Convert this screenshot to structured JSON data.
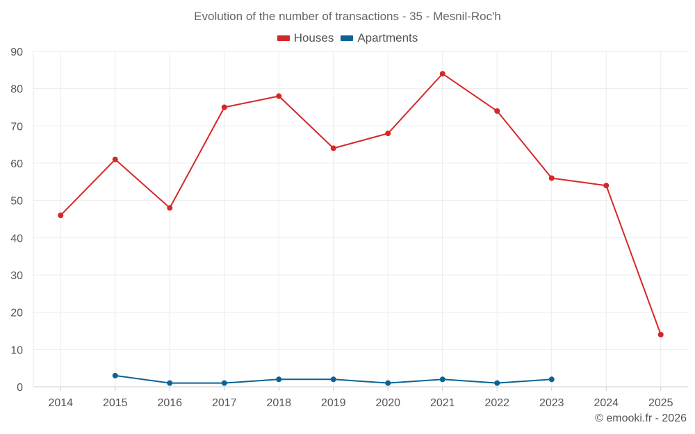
{
  "chart_data": {
    "type": "line",
    "title": "Evolution of the number of transactions - 35 - Mesnil-Roc'h",
    "categories": [
      "2014",
      "2015",
      "2016",
      "2017",
      "2018",
      "2019",
      "2020",
      "2021",
      "2022",
      "2023",
      "2024",
      "2025"
    ],
    "series": [
      {
        "name": "Houses",
        "color": "#d62728",
        "values": [
          46,
          61,
          48,
          75,
          78,
          64,
          68,
          84,
          74,
          56,
          54,
          14
        ]
      },
      {
        "name": "Apartments",
        "color": "#0a6396",
        "values": [
          null,
          3,
          1,
          1,
          2,
          2,
          1,
          2,
          1,
          2,
          null,
          null
        ]
      }
    ],
    "yticks": [
      0,
      10,
      20,
      30,
      40,
      50,
      60,
      70,
      80,
      90
    ],
    "ylim": [
      0,
      90
    ],
    "xlabel": "",
    "ylabel": "",
    "grid": true,
    "legend_position": "top-center"
  },
  "credit": "© emooki.fr - 2026"
}
